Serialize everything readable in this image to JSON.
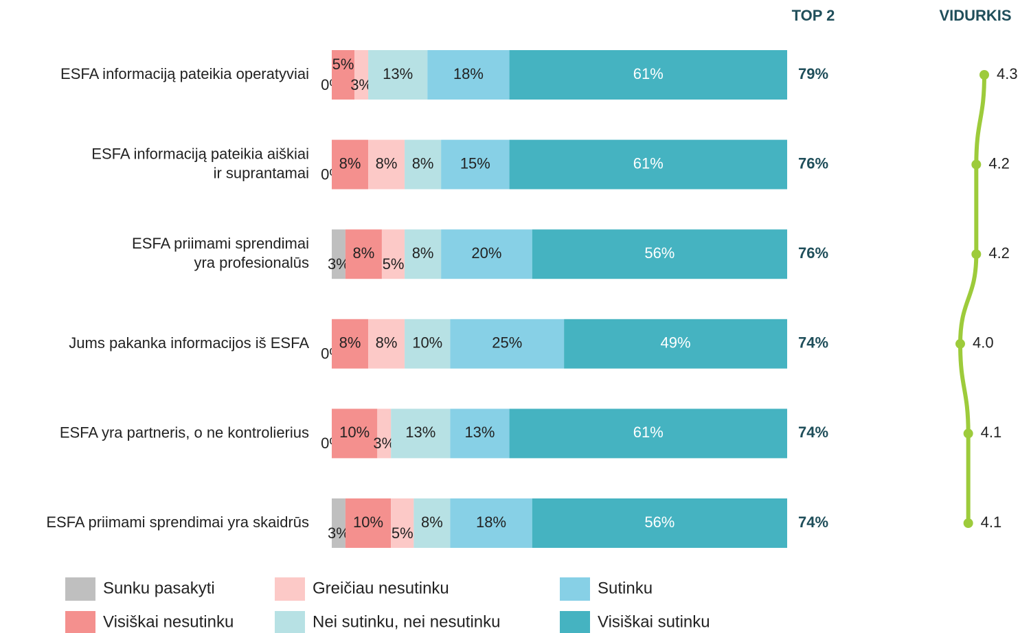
{
  "chart_data": {
    "type": "stacked_bar",
    "categories": [
      "ESFA informaciją pateikia operatyviai",
      "ESFA informaciją pateikia aiškiai\nir suprantamai",
      "ESFA priimami sprendimai\nyra profesionalūs",
      "Jums pakanka informacijos iš ESFA",
      "ESFA yra partneris, o ne kontrolierius",
      "ESFA priimami sprendimai yra skaidrūs"
    ],
    "series": [
      {
        "name": "Sunku pasakyti",
        "color": "#bfbfbf",
        "values": [
          0,
          0,
          3,
          0,
          0,
          3
        ],
        "value_labels": [
          "0%",
          "0%",
          "3%",
          "0%",
          "0%",
          "3%"
        ]
      },
      {
        "name": "Visiškai nesutinku",
        "color": "#f4908e",
        "values": [
          5,
          8,
          8,
          8,
          10,
          10
        ],
        "value_labels": [
          "5%",
          "8%",
          "8%",
          "8%",
          "10%",
          "10%"
        ]
      },
      {
        "name": "Greičiau nesutinku",
        "color": "#fcc9c7",
        "values": [
          3,
          8,
          5,
          8,
          3,
          5
        ],
        "value_labels": [
          "3%",
          "8%",
          "5%",
          "8%",
          "3%",
          "5%"
        ]
      },
      {
        "name": "Nei sutinku, nei nesutinku",
        "color": "#b7e1e4",
        "values": [
          13,
          8,
          8,
          10,
          13,
          8
        ],
        "value_labels": [
          "13%",
          "8%",
          "8%",
          "10%",
          "13%",
          "8%"
        ]
      },
      {
        "name": "Sutinku",
        "color": "#87d0e6",
        "values": [
          18,
          15,
          20,
          25,
          13,
          18
        ],
        "value_labels": [
          "18%",
          "15%",
          "20%",
          "25%",
          "13%",
          "18%"
        ]
      },
      {
        "name": "Visiškai sutinku",
        "color": "#45b3c1",
        "values": [
          61,
          61,
          56,
          49,
          61,
          56
        ],
        "value_labels": [
          "61%",
          "61%",
          "56%",
          "49%",
          "61%",
          "56%"
        ]
      }
    ],
    "top2": {
      "title": "TOP 2",
      "color": "#1f4e5a",
      "values": [
        79,
        76,
        76,
        74,
        74,
        74
      ],
      "value_labels": [
        "79%",
        "76%",
        "76%",
        "74%",
        "74%",
        "74%"
      ]
    },
    "average": {
      "title": "VIDURKIS",
      "color": "#9dcb3b",
      "values": [
        4.3,
        4.2,
        4.2,
        4.0,
        4.1,
        4.1
      ],
      "value_labels": [
        "4.3",
        "4.2",
        "4.2",
        "4.0",
        "4.1",
        "4.1"
      ]
    }
  }
}
